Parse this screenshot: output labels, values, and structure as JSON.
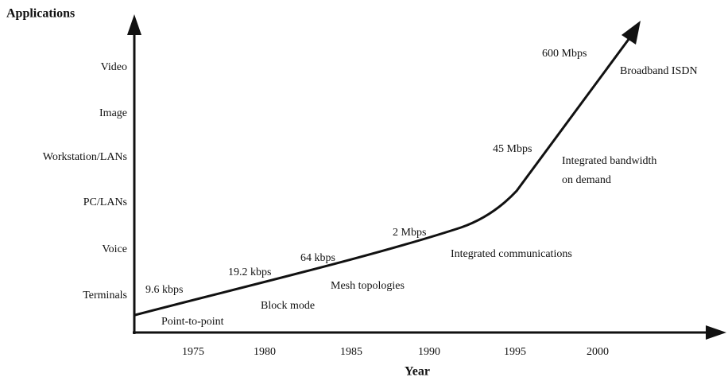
{
  "y_axis": {
    "title": "Applications",
    "labels": [
      "Terminals",
      "Voice",
      "PC/LANs",
      "Workstation/LANs",
      "Image",
      "Video"
    ]
  },
  "x_axis": {
    "title": "Year",
    "labels": [
      "1975",
      "1980",
      "1985",
      "1990",
      "1995",
      "2000"
    ]
  },
  "annotations": [
    {
      "rate": "9.6 kbps",
      "description": "Point-to-point"
    },
    {
      "rate": "19.2 kbps",
      "description": "Block mode"
    },
    {
      "rate": "64 kbps",
      "description": "Mesh topologies"
    },
    {
      "rate": "2 Mbps",
      "description": "Integrated communications"
    },
    {
      "rate": "45 Mbps",
      "description": [
        "Integrated bandwidth",
        "on demand"
      ]
    },
    {
      "rate": "600 Mbps",
      "description": "Broadband ISDN"
    }
  ]
}
